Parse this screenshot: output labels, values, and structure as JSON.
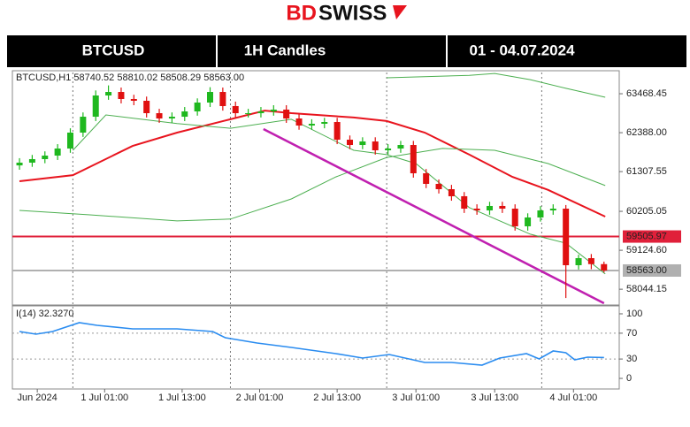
{
  "logo": {
    "brand_a": "BD",
    "brand_b": "SWISS"
  },
  "header": {
    "symbol": "BTCUSD",
    "timeframe": "1H Candles",
    "dates": "01 - 04.07.2024"
  },
  "chart_data": [
    {
      "type": "candlestick",
      "info": "BTCUSD,H1  58740.52 58810.02 58508.29 58563.00",
      "open": [
        61480,
        61556,
        61654,
        61752,
        61948,
        62390,
        62831,
        63420,
        63518,
        63322,
        63273,
        62929,
        62782,
        62831,
        62978,
        63224,
        63518,
        63126,
        62929,
        62929,
        62978,
        63028,
        62782,
        62586,
        62635,
        62684,
        62193,
        62046,
        62144,
        61899,
        61948,
        62046,
        61261,
        60967,
        60820,
        60624,
        60280,
        60231,
        60354,
        60280,
        59790,
        60035,
        60231,
        60280,
        58710,
        58906,
        58740.52
      ],
      "high": [
        61680,
        61770,
        61870,
        62070,
        62510,
        62950,
        63560,
        63700,
        63640,
        63440,
        63390,
        63050,
        62950,
        63100,
        63340,
        63650,
        63640,
        63250,
        63050,
        63100,
        63150,
        63150,
        62900,
        62760,
        62800,
        62800,
        62310,
        62260,
        62260,
        62070,
        62160,
        62160,
        61380,
        61090,
        60940,
        60740,
        60400,
        60470,
        60470,
        60400,
        60150,
        60350,
        60400,
        60380,
        59000,
        59020,
        58810.02
      ],
      "low": [
        61360,
        61440,
        61540,
        61630,
        61830,
        62270,
        62710,
        63300,
        63200,
        63150,
        62810,
        62660,
        62660,
        62710,
        62860,
        63100,
        63000,
        62810,
        62810,
        62810,
        62860,
        62660,
        62470,
        62470,
        62510,
        62070,
        61930,
        61930,
        61780,
        61780,
        61830,
        61140,
        60850,
        60700,
        60500,
        60160,
        60110,
        60110,
        60160,
        59670,
        59670,
        59920,
        60110,
        57800,
        58590,
        58600,
        58508.29
      ],
      "close": [
        61556,
        61654,
        61752,
        61948,
        62390,
        62831,
        63420,
        63518,
        63322,
        63273,
        62929,
        62782,
        62831,
        62978,
        63224,
        63518,
        63126,
        62929,
        62929,
        62978,
        63028,
        62782,
        62586,
        62635,
        62684,
        62193,
        62046,
        62144,
        61899,
        61948,
        62046,
        61261,
        60967,
        60820,
        60624,
        60280,
        60231,
        60354,
        60280,
        59790,
        60035,
        60231,
        60280,
        58710,
        58906,
        58740.52,
        58563
      ],
      "up_color": "#1fb81f",
      "down_color": "#e01010",
      "xlim": [
        -0.56,
        47.2
      ],
      "ylim": [
        57655,
        64058
      ],
      "yticks": [
        63468.45,
        {
          "value": 62388,
          "label": "62388.00"
        },
        61307.55,
        60205.05,
        {
          "value": 59124.6,
          "label": "59124.60"
        },
        58044.15
      ],
      "xticks": [
        {
          "value": 1.4,
          "label": "Jun 2024"
        },
        {
          "value": 6.7,
          "label": "1 Jul 01:00"
        },
        {
          "value": 12.8,
          "label": "1 Jul 13:00"
        },
        {
          "value": 18.9,
          "label": "2 Jul 01:00"
        },
        {
          "value": 25.0,
          "label": "2 Jul 13:00"
        },
        {
          "value": 31.2,
          "label": "3 Jul 01:00"
        },
        {
          "value": 37.4,
          "label": "3 Jul 13:00"
        },
        {
          "value": 43.6,
          "label": "4 Jul 01:00"
        }
      ],
      "separators": [
        4.2,
        16.6,
        28.9,
        41.1
      ],
      "lines": [
        {
          "color": "#e8141e",
          "width": 2,
          "x": [
            0,
            4.2,
            8.9,
            12.4,
            16.6,
            19.3,
            21.4,
            26.3,
            28.9,
            31.9,
            35.4,
            38.8,
            41.6,
            46.1
          ],
          "values": [
            61040,
            61210,
            62020,
            62390,
            62760,
            63000,
            62930,
            62810,
            62710,
            62390,
            61780,
            61160,
            60800,
            60060
          ]
        },
        {
          "color": "#4caf50",
          "width": 1,
          "x": [
            4.2,
            6.8,
            12.4,
            16.6,
            21.4,
            26.3,
            28.9,
            31.2,
            35.4,
            40.2,
            43.0,
            46.1
          ],
          "values": [
            61900,
            62880,
            62640,
            62510,
            62760,
            61900,
            61780,
            61530,
            60310,
            59570,
            59320,
            58470
          ]
        },
        {
          "color": "#4caf50",
          "width": 1,
          "x": [
            0,
            5.4,
            12.4,
            16.6,
            21.4,
            24.9,
            28.9,
            33.3,
            37.4,
            41.6,
            46.1
          ],
          "values": [
            60230,
            60110,
            59940,
            59990,
            60550,
            61160,
            61700,
            61950,
            61900,
            61530,
            60920
          ]
        },
        {
          "color": "#4caf50",
          "width": 1,
          "x": [
            28.9,
            35.4,
            37.4,
            40.2,
            43.0,
            46.1
          ],
          "values": [
            63910,
            63980,
            64030,
            63860,
            63620,
            63370
          ]
        },
        {
          "color": "#c020b0",
          "width": 2.5,
          "x": [
            19.2,
            46.0
          ],
          "values": [
            62488,
            57655
          ]
        }
      ],
      "hlines": [
        {
          "value": 59505.97,
          "color": "#e0203a"
        },
        {
          "value": 58563,
          "label": "58563.00",
          "color": "#b0b0b0"
        }
      ]
    },
    {
      "type": "line",
      "title": "I(14) 32.3270",
      "color": "#2a8cf0",
      "x": [
        0,
        1.3,
        2.6,
        4.7,
        6.1,
        8.9,
        12.4,
        15.2,
        16.2,
        18.7,
        21.4,
        24.9,
        27.0,
        29.1,
        31.9,
        34.0,
        36.4,
        37.8,
        39.9,
        40.9,
        42.0,
        43.0,
        43.7,
        44.7,
        46.0
      ],
      "values": [
        72.6,
        68.5,
        72.6,
        86.3,
        82.2,
        76.7,
        76.7,
        72.6,
        63.0,
        54.8,
        47.9,
        38.4,
        31.5,
        37.0,
        24.7,
        24.7,
        20.5,
        31.5,
        38.4,
        30.1,
        42.5,
        39.7,
        28.8,
        32.9,
        32.327
      ],
      "ylim": [
        -16.4,
        112.3
      ],
      "yticks": [
        100,
        70,
        30,
        0
      ],
      "levels": [
        70,
        30
      ]
    }
  ]
}
